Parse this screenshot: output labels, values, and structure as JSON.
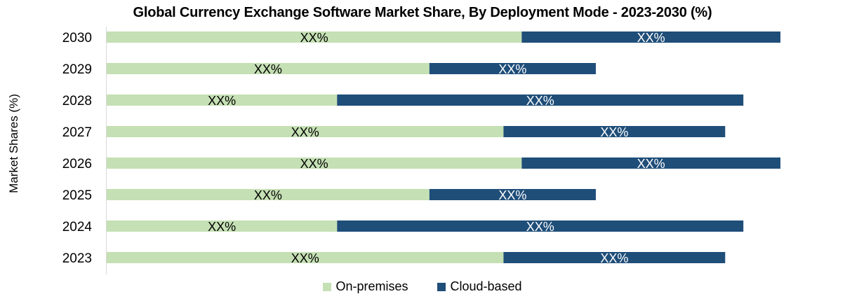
{
  "chart_data": {
    "type": "bar",
    "orientation": "horizontal",
    "stacked": true,
    "title": "Global Currency Exchange Software Market Share, By Deployment Mode - 2023-2030 (%)",
    "xlabel": "",
    "ylabel": "Market Shares (%)",
    "categories": [
      "2030",
      "2029",
      "2028",
      "2027",
      "2026",
      "2025",
      "2024",
      "2023"
    ],
    "series": [
      {
        "name": "On-premises",
        "color": "#c5e0b4",
        "label_color": "#000000",
        "values": [
          61.6,
          47.9,
          34.2,
          58.9,
          61.6,
          47.9,
          34.2,
          58.9
        ],
        "data_labels": [
          "XX%",
          "XX%",
          "XX%",
          "XX%",
          "XX%",
          "XX%",
          "XX%",
          "XX%"
        ]
      },
      {
        "name": "Cloud-based",
        "color": "#1f4e79",
        "label_color": "#ffffff",
        "values": [
          38.4,
          24.7,
          60.3,
          32.9,
          38.4,
          24.7,
          60.3,
          32.9
        ],
        "data_labels": [
          "XX%",
          "XX%",
          "XX%",
          "XX%",
          "XX%",
          "XX%",
          "XX%",
          "XX%"
        ]
      }
    ],
    "xlim": [
      0,
      100
    ],
    "grid": false,
    "x_axis_visible": false,
    "legend": "bottom-center"
  }
}
